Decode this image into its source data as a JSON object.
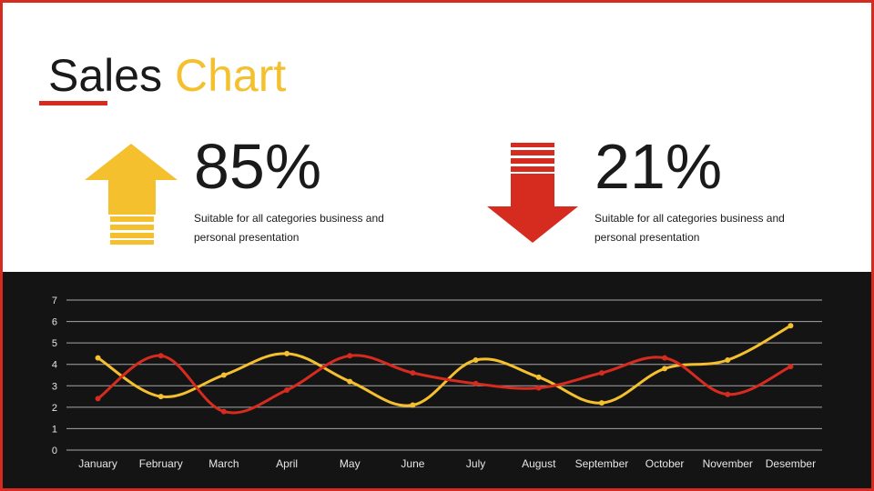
{
  "title": {
    "main": "Sales",
    "accent": "Chart"
  },
  "stats": [
    {
      "value": "85%",
      "description": "Suitable for all categories business and personal presentation",
      "direction": "up",
      "icon": "up-arrow-icon",
      "color": "#f5c02e"
    },
    {
      "value": "21%",
      "description": "Suitable for all categories business and personal presentation",
      "direction": "down",
      "icon": "down-arrow-icon",
      "color": "#d62b1f"
    }
  ],
  "colors": {
    "accent_red": "#d62b1f",
    "accent_yellow": "#f5c02e",
    "panel_bg": "#141414",
    "text_dark": "#1a1a1a"
  },
  "chart_data": {
    "type": "line",
    "categories": [
      "January",
      "February",
      "March",
      "April",
      "May",
      "June",
      "July",
      "August",
      "September",
      "October",
      "November",
      "Desember"
    ],
    "series": [
      {
        "color": "#f5c02e",
        "values": [
          4.3,
          2.5,
          3.5,
          4.5,
          3.2,
          2.1,
          4.2,
          3.4,
          2.2,
          3.8,
          4.2,
          5.8
        ]
      },
      {
        "color": "#d62b1f",
        "values": [
          2.4,
          4.4,
          1.8,
          2.8,
          4.4,
          3.6,
          3.1,
          2.9,
          3.6,
          4.3,
          2.6,
          3.9
        ]
      }
    ],
    "ylim": [
      0,
      7
    ],
    "yticks": [
      "0",
      "1",
      "2",
      "3",
      "4",
      "5",
      "6",
      "7"
    ],
    "grid": true,
    "smooth": true,
    "title": "",
    "xlabel": "",
    "ylabel": ""
  }
}
